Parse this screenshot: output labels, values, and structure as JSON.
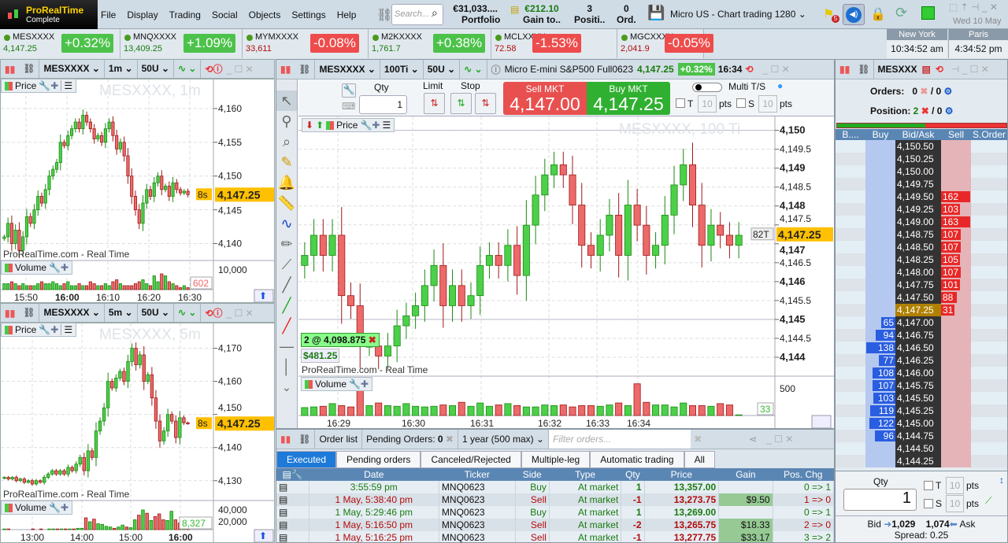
{
  "app": {
    "logo_line1": "ProRealTime",
    "logo_line2": "Complete",
    "menu": [
      "File",
      "Display",
      "Trading",
      "Social",
      "Objects",
      "Settings",
      "Help"
    ],
    "search_placeholder": "Search...",
    "portfolio_value": "€31,033....",
    "portfolio_label": "Portfolio",
    "gain_value": "€212.10",
    "gain_label": "Gain to..",
    "positions_value": "3",
    "positions_label": "Positi..",
    "orders_value": "0",
    "orders_label": "Ord.",
    "workspace": "Micro US - Chart trading 1280",
    "flag_badge": "5",
    "date": "Wed 10 May"
  },
  "tickers": [
    {
      "name": "MESXXXX",
      "price": "4,147.25",
      "change": "+0.32%",
      "dir": "up"
    },
    {
      "name": "MNQXXXX",
      "price": "13,409.25",
      "change": "+1.09%",
      "dir": "up"
    },
    {
      "name": "MYMXXXX",
      "price": "33,611",
      "change": "-0.08%",
      "dir": "dn"
    },
    {
      "name": "M2KXXXX",
      "price": "1,761.7",
      "change": "+0.38%",
      "dir": "up"
    },
    {
      "name": "MCLXXXX",
      "price": "72.58",
      "change": "-1.53%",
      "dir": "dn"
    },
    {
      "name": "MGCXXXX",
      "price": "2,041.9",
      "change": "-0.05%",
      "dir": "dn"
    }
  ],
  "clocks": [
    {
      "city": "New York",
      "time": "10:34:52 am"
    },
    {
      "city": "Paris",
      "time": "4:34:52 pm"
    }
  ],
  "colors": {
    "up": "#4cc24a",
    "down": "#ee5c5c",
    "accent": "#1e7ad8",
    "last_price": "#ffc000"
  },
  "chart1": {
    "symbol": "MESXXXX",
    "interval": "1m",
    "units": "50U",
    "watermark": "MESXXXX, 1m",
    "price_label": "Price",
    "volume_label": "Volume",
    "source": "ProRealTime.com - Real Time",
    "last": "4,147.25",
    "countdown": "8s",
    "vol_last": "602",
    "y_ticks": [
      "4,160",
      "4,155",
      "4,150",
      "4,145",
      "4,140"
    ],
    "vol_tick": "10,000",
    "x_ticks": [
      "15:50",
      "16:00",
      "16:10",
      "16:20",
      "16:30"
    ],
    "closes": [
      4141,
      4143,
      4140,
      4142,
      4139,
      4141,
      4144,
      4143,
      4145,
      4147,
      4146,
      4148,
      4150,
      4151,
      4152,
      4155,
      4154.5,
      4156,
      4157,
      4158,
      4157,
      4159,
      4158,
      4157,
      4155.5,
      4156,
      4155,
      4157,
      4158,
      4156,
      4154,
      4155,
      4153,
      4150,
      4147,
      4145,
      4143,
      4146,
      4148,
      4147,
      4149,
      4150,
      4148,
      4148.5,
      4147,
      4149,
      4148,
      4147.5,
      4147.75,
      4147.25
    ],
    "volumes": [
      3,
      3,
      4,
      3,
      2,
      3,
      2,
      2,
      2,
      3,
      4,
      3,
      3,
      4,
      3,
      2,
      3,
      4,
      2,
      2,
      3,
      2,
      2,
      4,
      3,
      2,
      2,
      3,
      2,
      4,
      5,
      3,
      2,
      2,
      2,
      3,
      4,
      5,
      3,
      2,
      7,
      4,
      8,
      7,
      4,
      3,
      2,
      1,
      2,
      1
    ]
  },
  "chart2": {
    "symbol": "MESXXXX",
    "interval": "5m",
    "units": "50U",
    "watermark": "MESXXXX, 5m",
    "price_label": "Price",
    "volume_label": "Volume",
    "source": "ProRealTime.com - Real Time",
    "last": "4,147.25",
    "countdown": "8s",
    "vol_last": "8,327",
    "y_ticks": [
      "4,170",
      "4,160",
      "4,150",
      "4,140",
      "4,130"
    ],
    "vol_ticks": [
      "40,000",
      "20,000"
    ],
    "x_ticks": [
      "13:00",
      "14:00",
      "15:00",
      "16:00"
    ],
    "closes": [
      4131,
      4130.5,
      4131,
      4130,
      4130.5,
      4129.5,
      4130,
      4129,
      4130,
      4129.5,
      4131,
      4132,
      4133,
      4132,
      4133,
      4132,
      4134,
      4133,
      4135,
      4137,
      4133,
      4139,
      4137,
      4145,
      4148,
      4152,
      4160,
      4158,
      4161,
      4163,
      4160,
      4166,
      4170,
      4165,
      4168,
      4160,
      4162,
      4155,
      4148,
      4142,
      4145,
      4150,
      4148,
      4143,
      4149,
      4147.5,
      4147.25
    ],
    "volumes": [
      1,
      1,
      0,
      0,
      0,
      0,
      0,
      1,
      0,
      1,
      0,
      1,
      1,
      1,
      1,
      1,
      1,
      1,
      2,
      2,
      18,
      12,
      16,
      9,
      8,
      5,
      4,
      2,
      4,
      7,
      4,
      3,
      15,
      22,
      30,
      25,
      14,
      20,
      24,
      15,
      14,
      28,
      15,
      10,
      9,
      8
    ]
  },
  "main": {
    "symbol": "MESXXXX",
    "interval": "100Ti",
    "units": "50U",
    "instrument": "Micro E-mini S&P500 Full0623",
    "price": "4,147.25",
    "change": "+0.32%",
    "time": "16:34",
    "qty_label": "Qty",
    "qty": "1",
    "limit_label": "Limit",
    "stop_label": "Stop",
    "sell_label": "Sell MKT",
    "sell_price": "4,147.00",
    "buy_label": "Buy MKT",
    "buy_price": "4,147.25",
    "multi_label": "Multi T/S",
    "t_label": "T",
    "s_label": "S",
    "t_pts": "10",
    "s_pts": "10",
    "pts_label": "pts",
    "watermark": "MESXXXX, 100 Ti",
    "price_label": "Price",
    "volume_label": "Volume",
    "source": "ProRealTime.com - Real Time",
    "position_label": "2 @ 4,098.875",
    "position_gain": "$481.25",
    "last": "4,147.25",
    "ticks_left": "82T",
    "vol_last": "33",
    "vol_tick": "500",
    "y_ticks": [
      "4,150",
      "4,149.5",
      "4,149",
      "4,148.5",
      "4,148",
      "4,147.5",
      "4,147",
      "4,146.5",
      "4,146",
      "4,145.5",
      "4,145",
      "4,144.5",
      "4,144"
    ],
    "x_ticks": [
      "16:29",
      "16:30",
      "16:31",
      "16:32",
      "16:33",
      "16:34"
    ],
    "closes": [
      4146.75,
      4147.25,
      4146.75,
      4147.25,
      4145.75,
      4145.5,
      4144.5,
      4144.5,
      4144.25,
      4144.5,
      4145.0,
      4145.25,
      4145.5,
      4146.0,
      4146.5,
      4145.5,
      4146.0,
      4145.5,
      4145.75,
      4146.5,
      4146.75,
      4146.5,
      4147.0,
      4146.25,
      4147.5,
      4148.25,
      4148.75,
      4149.0,
      4148.75,
      4148.0,
      4147.0,
      4146.75,
      4147.25,
      4147.75,
      4146.75,
      4148.0,
      4147.5,
      4146.75,
      4147.0,
      4147.75,
      4148.5,
      4149.0,
      4148.0,
      4147.0,
      4147.5,
      4147.25,
      4147.0,
      4147.25
    ],
    "volumes": [
      120,
      130,
      140,
      180,
      150,
      130,
      460,
      150,
      190,
      150,
      140,
      180,
      140,
      130,
      140,
      160,
      150,
      200,
      140,
      190,
      140,
      160,
      180,
      150,
      130,
      130,
      160,
      150,
      160,
      130,
      150,
      150,
      140,
      160,
      190,
      150,
      480,
      200,
      160,
      160,
      130,
      190,
      150,
      150,
      140,
      180,
      160,
      10
    ]
  },
  "orders": {
    "title": "Order list",
    "pending_label": "Pending Orders:",
    "pending_count": "0",
    "period": "1 year (500 max)",
    "filter_placeholder": "Filter orders...",
    "tabs": [
      "Executed",
      "Pending orders",
      "Canceled/Rejected",
      "Multiple-leg",
      "Automatic trading",
      "All"
    ],
    "columns": [
      "Date",
      "Ticker",
      "Side",
      "Type",
      "Qty",
      "Price",
      "Gain",
      "Pos. Chg"
    ],
    "rows": [
      {
        "date": "3:55:59 pm",
        "ticker": "MNQ0623",
        "side": "Buy",
        "type": "At market",
        "qty": "1",
        "price": "13,357.00",
        "gain": "",
        "pos": "0 => 1"
      },
      {
        "date": "1 May, 5:38:40 pm",
        "ticker": "MNQ0623",
        "side": "Sell",
        "type": "At market",
        "qty": "-1",
        "price": "13,273.75",
        "gain": "$9.50",
        "pos": "1 => 0"
      },
      {
        "date": "1 May, 5:29:46 pm",
        "ticker": "MNQ0623",
        "side": "Buy",
        "type": "At market",
        "qty": "1",
        "price": "13,269.00",
        "gain": "",
        "pos": "0 => 1"
      },
      {
        "date": "1 May, 5:16:50 pm",
        "ticker": "MNQ0623",
        "side": "Sell",
        "type": "At market",
        "qty": "-2",
        "price": "13,265.75",
        "gain": "$18.33",
        "pos": "2 => 0"
      },
      {
        "date": "1 May, 5:16:25 pm",
        "ticker": "MNQ0623",
        "side": "Sell",
        "type": "At market",
        "qty": "-1",
        "price": "13,277.75",
        "gain": "$33.17",
        "pos": "3 => 2"
      }
    ]
  },
  "dom": {
    "symbol": "MESXXX",
    "orders_label": "Orders:",
    "orders_a": "0",
    "orders_b": "/ 0",
    "position_label": "Position:",
    "position_a": "2",
    "position_b": "/ 0",
    "columns": [
      "B....",
      "Buy",
      "Bid/Ask",
      "Sell",
      "S.Order"
    ],
    "rows": [
      {
        "price": "4,150.50",
        "buy": "",
        "sell": ""
      },
      {
        "price": "4,150.25",
        "buy": "",
        "sell": ""
      },
      {
        "price": "4,150.00",
        "buy": "",
        "sell": ""
      },
      {
        "price": "4,149.75",
        "buy": "",
        "sell": ""
      },
      {
        "price": "4,149.50",
        "buy": "",
        "sell": "162"
      },
      {
        "price": "4,149.25",
        "buy": "",
        "sell": "103"
      },
      {
        "price": "4,149.00",
        "buy": "",
        "sell": "163"
      },
      {
        "price": "4,148.75",
        "buy": "",
        "sell": "107"
      },
      {
        "price": "4,148.50",
        "buy": "",
        "sell": "107"
      },
      {
        "price": "4,148.25",
        "buy": "",
        "sell": "105"
      },
      {
        "price": "4,148.00",
        "buy": "",
        "sell": "107"
      },
      {
        "price": "4,147.75",
        "buy": "",
        "sell": "101"
      },
      {
        "price": "4,147.50",
        "buy": "",
        "sell": "88"
      },
      {
        "price": "4,147.25",
        "buy": "",
        "sell": "31",
        "last": true
      },
      {
        "price": "4,147.00",
        "buy": "65",
        "sell": ""
      },
      {
        "price": "4,146.75",
        "buy": "94",
        "sell": ""
      },
      {
        "price": "4,146.50",
        "buy": "138",
        "sell": ""
      },
      {
        "price": "4,146.25",
        "buy": "77",
        "sell": ""
      },
      {
        "price": "4,146.00",
        "buy": "108",
        "sell": ""
      },
      {
        "price": "4,145.75",
        "buy": "107",
        "sell": ""
      },
      {
        "price": "4,145.50",
        "buy": "103",
        "sell": ""
      },
      {
        "price": "4,145.25",
        "buy": "119",
        "sell": ""
      },
      {
        "price": "4,145.00",
        "buy": "122",
        "sell": ""
      },
      {
        "price": "4,144.75",
        "buy": "96",
        "sell": ""
      },
      {
        "price": "4,144.50",
        "buy": "",
        "sell": ""
      },
      {
        "price": "4,144.25",
        "buy": "",
        "sell": ""
      }
    ],
    "qty_label": "Qty",
    "qty": "1",
    "t_label": "T",
    "s_label": "S",
    "t_pts": "10",
    "s_pts": "10",
    "pts_label": "pts",
    "bid_label": "Bid",
    "bid": "1,029",
    "ask": "1,074",
    "ask_label": "Ask",
    "spread_label": "Spread:",
    "spread": "0.25",
    "buy_share": 0.52
  }
}
